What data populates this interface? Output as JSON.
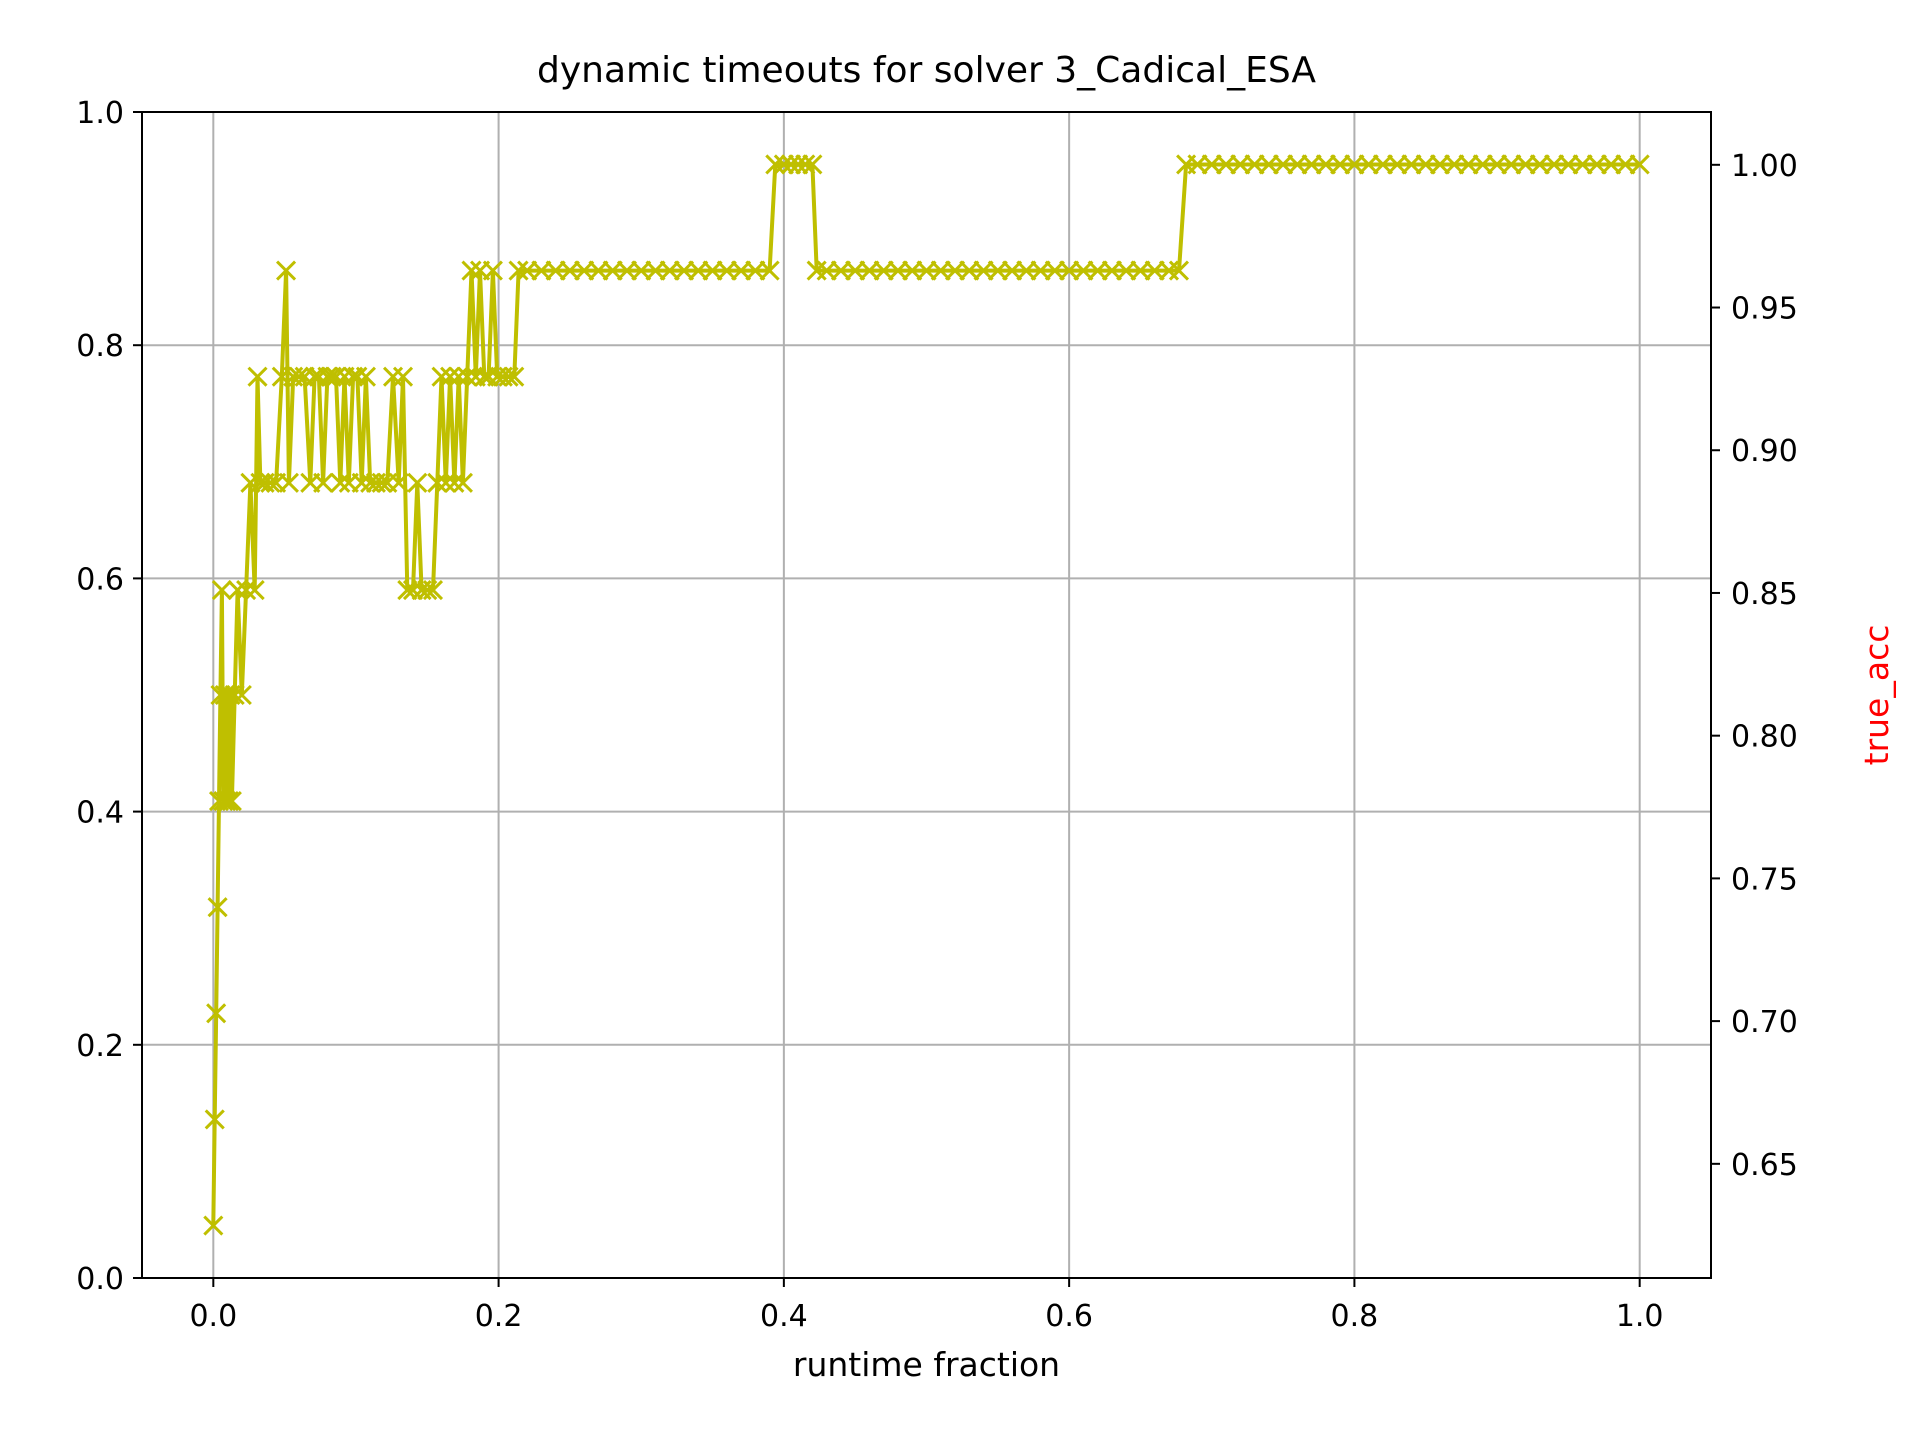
{
  "chart_data": {
    "type": "line",
    "title": "dynamic timeouts for solver 3_Cadical_ESA",
    "xlabel": "runtime fraction",
    "ylabel": "",
    "ylabel_right": "true_acc",
    "ylabel_right_color": "#ff0000",
    "xlim": [
      -0.05,
      1.05
    ],
    "ylim": [
      0.0,
      1.0
    ],
    "ylim_right": [
      0.61,
      1.0185
    ],
    "x_ticks": [
      0.0,
      0.2,
      0.4,
      0.6,
      0.8,
      1.0
    ],
    "x_tick_labels": [
      "0.0",
      "0.2",
      "0.4",
      "0.6",
      "0.8",
      "1.0"
    ],
    "y_ticks": [
      0.0,
      0.2,
      0.4,
      0.6,
      0.8,
      1.0
    ],
    "y_tick_labels": [
      "0.0",
      "0.2",
      "0.4",
      "0.6",
      "0.8",
      "1.0"
    ],
    "y_right_ticks": [
      0.65,
      0.7,
      0.75,
      0.8,
      0.85,
      0.9,
      0.95,
      1.0
    ],
    "y_right_tick_labels": [
      "0.65",
      "0.70",
      "0.75",
      "0.80",
      "0.85",
      "0.90",
      "0.95",
      "1.00"
    ],
    "grid": true,
    "series": [
      {
        "axis": "left",
        "color": "#bfbf00",
        "marker": "x",
        "points": [
          [
            0.0,
            0.045
          ],
          [
            0.001,
            0.136
          ],
          [
            0.002,
            0.227
          ],
          [
            0.003,
            0.318
          ],
          [
            0.004,
            0.409
          ],
          [
            0.005,
            0.5
          ],
          [
            0.006,
            0.59
          ],
          [
            0.007,
            0.409
          ],
          [
            0.008,
            0.5
          ],
          [
            0.009,
            0.409
          ],
          [
            0.01,
            0.5
          ],
          [
            0.011,
            0.409
          ],
          [
            0.012,
            0.5
          ],
          [
            0.013,
            0.409
          ],
          [
            0.015,
            0.5
          ],
          [
            0.017,
            0.59
          ],
          [
            0.02,
            0.5
          ],
          [
            0.023,
            0.59
          ],
          [
            0.026,
            0.682
          ],
          [
            0.029,
            0.59
          ],
          [
            0.031,
            0.773
          ],
          [
            0.033,
            0.682
          ],
          [
            0.036,
            0.682
          ],
          [
            0.04,
            0.682
          ],
          [
            0.044,
            0.682
          ],
          [
            0.048,
            0.773
          ],
          [
            0.051,
            0.864
          ],
          [
            0.053,
            0.682
          ],
          [
            0.056,
            0.773
          ],
          [
            0.06,
            0.773
          ],
          [
            0.064,
            0.773
          ],
          [
            0.068,
            0.682
          ],
          [
            0.071,
            0.773
          ],
          [
            0.074,
            0.773
          ],
          [
            0.077,
            0.682
          ],
          [
            0.08,
            0.773
          ],
          [
            0.083,
            0.773
          ],
          [
            0.086,
            0.773
          ],
          [
            0.089,
            0.682
          ],
          [
            0.092,
            0.773
          ],
          [
            0.095,
            0.682
          ],
          [
            0.098,
            0.773
          ],
          [
            0.101,
            0.773
          ],
          [
            0.104,
            0.682
          ],
          [
            0.107,
            0.773
          ],
          [
            0.11,
            0.682
          ],
          [
            0.114,
            0.682
          ],
          [
            0.118,
            0.682
          ],
          [
            0.122,
            0.682
          ],
          [
            0.126,
            0.773
          ],
          [
            0.13,
            0.682
          ],
          [
            0.133,
            0.773
          ],
          [
            0.136,
            0.59
          ],
          [
            0.14,
            0.59
          ],
          [
            0.143,
            0.682
          ],
          [
            0.146,
            0.59
          ],
          [
            0.15,
            0.59
          ],
          [
            0.154,
            0.59
          ],
          [
            0.157,
            0.682
          ],
          [
            0.16,
            0.773
          ],
          [
            0.163,
            0.682
          ],
          [
            0.166,
            0.773
          ],
          [
            0.169,
            0.682
          ],
          [
            0.172,
            0.773
          ],
          [
            0.175,
            0.682
          ],
          [
            0.178,
            0.773
          ],
          [
            0.181,
            0.864
          ],
          [
            0.184,
            0.773
          ],
          [
            0.187,
            0.864
          ],
          [
            0.19,
            0.773
          ],
          [
            0.193,
            0.773
          ],
          [
            0.196,
            0.864
          ],
          [
            0.199,
            0.773
          ],
          [
            0.203,
            0.773
          ],
          [
            0.207,
            0.773
          ],
          [
            0.211,
            0.773
          ],
          [
            0.214,
            0.864
          ],
          [
            0.22,
            0.864
          ],
          [
            0.23,
            0.864
          ],
          [
            0.24,
            0.864
          ],
          [
            0.25,
            0.864
          ],
          [
            0.26,
            0.864
          ],
          [
            0.27,
            0.864
          ],
          [
            0.28,
            0.864
          ],
          [
            0.29,
            0.864
          ],
          [
            0.3,
            0.864
          ],
          [
            0.31,
            0.864
          ],
          [
            0.32,
            0.864
          ],
          [
            0.33,
            0.864
          ],
          [
            0.34,
            0.864
          ],
          [
            0.35,
            0.864
          ],
          [
            0.36,
            0.864
          ],
          [
            0.37,
            0.864
          ],
          [
            0.38,
            0.864
          ],
          [
            0.39,
            0.864
          ],
          [
            0.394,
            0.955
          ],
          [
            0.4,
            0.955
          ],
          [
            0.405,
            0.955
          ],
          [
            0.41,
            0.955
          ],
          [
            0.415,
            0.955
          ],
          [
            0.42,
            0.955
          ],
          [
            0.423,
            0.864
          ],
          [
            0.43,
            0.864
          ],
          [
            0.44,
            0.864
          ],
          [
            0.45,
            0.864
          ],
          [
            0.46,
            0.864
          ],
          [
            0.47,
            0.864
          ],
          [
            0.48,
            0.864
          ],
          [
            0.49,
            0.864
          ],
          [
            0.5,
            0.864
          ],
          [
            0.51,
            0.864
          ],
          [
            0.52,
            0.864
          ],
          [
            0.53,
            0.864
          ],
          [
            0.54,
            0.864
          ],
          [
            0.55,
            0.864
          ],
          [
            0.56,
            0.864
          ],
          [
            0.57,
            0.864
          ],
          [
            0.58,
            0.864
          ],
          [
            0.59,
            0.864
          ],
          [
            0.6,
            0.864
          ],
          [
            0.61,
            0.864
          ],
          [
            0.62,
            0.864
          ],
          [
            0.63,
            0.864
          ],
          [
            0.64,
            0.864
          ],
          [
            0.65,
            0.864
          ],
          [
            0.66,
            0.864
          ],
          [
            0.67,
            0.864
          ],
          [
            0.677,
            0.864
          ],
          [
            0.682,
            0.955
          ],
          [
            0.69,
            0.955
          ],
          [
            0.7,
            0.955
          ],
          [
            0.71,
            0.955
          ],
          [
            0.72,
            0.955
          ],
          [
            0.73,
            0.955
          ],
          [
            0.74,
            0.955
          ],
          [
            0.75,
            0.955
          ],
          [
            0.76,
            0.955
          ],
          [
            0.77,
            0.955
          ],
          [
            0.78,
            0.955
          ],
          [
            0.79,
            0.955
          ],
          [
            0.8,
            0.955
          ],
          [
            0.81,
            0.955
          ],
          [
            0.82,
            0.955
          ],
          [
            0.83,
            0.955
          ],
          [
            0.84,
            0.955
          ],
          [
            0.85,
            0.955
          ],
          [
            0.86,
            0.955
          ],
          [
            0.87,
            0.955
          ],
          [
            0.88,
            0.955
          ],
          [
            0.89,
            0.955
          ],
          [
            0.9,
            0.955
          ],
          [
            0.91,
            0.955
          ],
          [
            0.92,
            0.955
          ],
          [
            0.93,
            0.955
          ],
          [
            0.94,
            0.955
          ],
          [
            0.95,
            0.955
          ],
          [
            0.96,
            0.955
          ],
          [
            0.97,
            0.955
          ],
          [
            0.98,
            0.955
          ],
          [
            0.99,
            0.955
          ],
          [
            1.0,
            0.955
          ]
        ]
      }
    ]
  }
}
